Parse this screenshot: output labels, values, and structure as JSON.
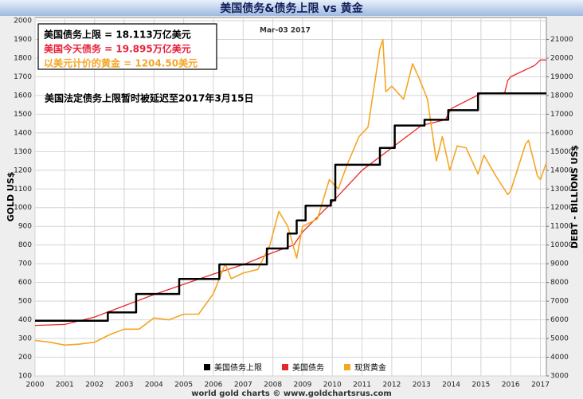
{
  "chart_data": {
    "type": "line",
    "title": "美国债务&债务上限 vs 黄金",
    "date_label": "Mar-03 2017",
    "annotations": [
      {
        "text": "美国债务上限 = 18.113万亿美元",
        "color": "#000000"
      },
      {
        "text": "美国今天债务 = 19.895万亿美元",
        "color": "#e8203a"
      },
      {
        "text": "以美元计价的黄金 = 1204.50美元",
        "color": "#f5a623"
      }
    ],
    "note": "美国法定债务上限暂时被延迟至2017年3月15日",
    "source": "world gold charts © www.goldchartsrus.com",
    "ylabel": "GOLD US$",
    "y2label": "DEBT - BILLIONS US$",
    "xlim": [
      2000,
      2017.2
    ],
    "xticks": [
      2000,
      2001,
      2002,
      2003,
      2004,
      2005,
      2006,
      2007,
      2008,
      2009,
      2010,
      2011,
      2012,
      2013,
      2014,
      2015,
      2016,
      2017
    ],
    "ylim": [
      100,
      2000
    ],
    "yticks": [
      100,
      200,
      300,
      400,
      500,
      600,
      700,
      800,
      900,
      1000,
      1100,
      1200,
      1300,
      1400,
      1500,
      1600,
      1700,
      1800,
      1900,
      2000
    ],
    "y2lim": [
      3000,
      22000
    ],
    "y2ticks": [
      3000,
      4000,
      5000,
      6000,
      7000,
      8000,
      9000,
      10000,
      11000,
      12000,
      13000,
      14000,
      15000,
      16000,
      17000,
      18000,
      19000,
      20000,
      21000
    ],
    "grid": true,
    "series": [
      {
        "name": "美国债务上限",
        "color": "#000000",
        "axis": "y2",
        "x": [
          2000,
          2002.45,
          2002.45,
          2003.4,
          2003.4,
          2004.85,
          2004.85,
          2006.2,
          2006.2,
          2007.8,
          2007.8,
          2008.5,
          2008.5,
          2008.8,
          2008.8,
          2009.1,
          2009.1,
          2009.95,
          2009.95,
          2010.1,
          2010.1,
          2011.6,
          2011.6,
          2012.1,
          2012.1,
          2013.1,
          2013.1,
          2013.9,
          2013.9,
          2014.9,
          2014.9,
          2015.8,
          2015.8,
          2017.2
        ],
        "values": [
          5950,
          5950,
          6400,
          6400,
          7384,
          7384,
          8184,
          8184,
          8965,
          8965,
          9815,
          9815,
          10615,
          10615,
          11315,
          11315,
          12104,
          12104,
          12394,
          12394,
          14294,
          14294,
          15194,
          15194,
          16394,
          16394,
          16699,
          16699,
          17212,
          17212,
          18113,
          18113,
          18113,
          18113
        ]
      },
      {
        "name": "美国债务",
        "color": "#e8272a",
        "axis": "y2",
        "x": [
          2000,
          2001,
          2002,
          2003,
          2004,
          2005,
          2006,
          2007,
          2008,
          2008.7,
          2009,
          2010,
          2011,
          2012,
          2013,
          2013.8,
          2014,
          2015,
          2015.8,
          2015.9,
          2016,
          2016.8,
          2017,
          2017.2
        ],
        "values": [
          5700,
          5750,
          6150,
          6750,
          7350,
          7900,
          8450,
          8950,
          9600,
          10000,
          10700,
          12300,
          14000,
          15200,
          16400,
          16700,
          17300,
          18100,
          18150,
          18800,
          19000,
          19600,
          19900,
          19900
        ]
      },
      {
        "name": "现货黄金",
        "color": "#f5a623",
        "axis": "y",
        "x": [
          2000,
          2000.5,
          2001,
          2001.5,
          2002,
          2002.5,
          2003,
          2003.5,
          2004,
          2004.5,
          2005,
          2005.5,
          2006,
          2006.4,
          2006.6,
          2007,
          2007.5,
          2007.9,
          2008.2,
          2008.5,
          2008.8,
          2009,
          2009.5,
          2009.9,
          2010.2,
          2010.5,
          2010.9,
          2011.2,
          2011.6,
          2011.7,
          2011.8,
          2012,
          2012.4,
          2012.7,
          2012.9,
          2013.2,
          2013.5,
          2013.7,
          2013.95,
          2014.2,
          2014.5,
          2014.9,
          2015.1,
          2015.5,
          2015.9,
          2016,
          2016.5,
          2016.6,
          2016.9,
          2017,
          2017.2
        ],
        "values": [
          290,
          280,
          265,
          270,
          280,
          320,
          350,
          350,
          410,
          400,
          430,
          430,
          540,
          700,
          620,
          650,
          670,
          800,
          980,
          900,
          730,
          900,
          940,
          1150,
          1100,
          1230,
          1380,
          1430,
          1850,
          1900,
          1620,
          1650,
          1580,
          1770,
          1700,
          1580,
          1250,
          1380,
          1200,
          1330,
          1320,
          1180,
          1280,
          1170,
          1070,
          1090,
          1340,
          1360,
          1170,
          1150,
          1240
        ]
      }
    ]
  }
}
